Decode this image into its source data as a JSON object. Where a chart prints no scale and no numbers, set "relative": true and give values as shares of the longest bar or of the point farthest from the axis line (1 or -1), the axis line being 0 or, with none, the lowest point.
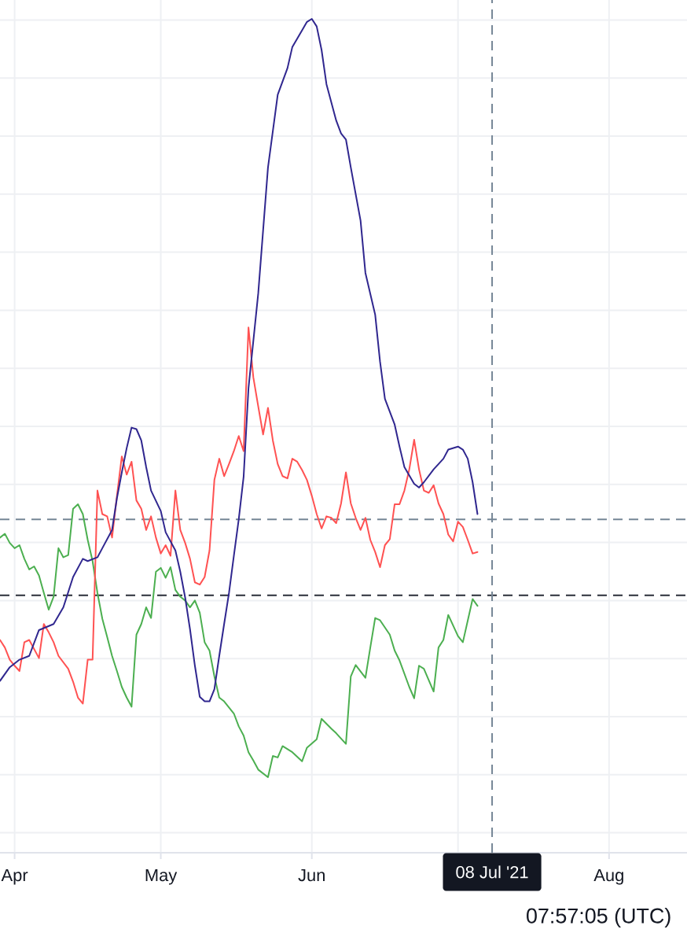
{
  "chart_data": {
    "type": "line",
    "relative": true,
    "grid": true,
    "xlim": [
      "2021-03-29",
      "2021-08-17"
    ],
    "xticks": [
      {
        "value": "2021-04-01",
        "label": "Apr"
      },
      {
        "value": "2021-05-01",
        "label": "May"
      },
      {
        "value": "2021-06-01",
        "label": "Jun"
      },
      {
        "value": "2021-07-01",
        "label": null
      },
      {
        "value": "2021-08-01",
        "label": "Aug"
      }
    ],
    "series": [
      {
        "color": "#4caf50",
        "x": [
          "2021-03-29",
          "2021-03-30",
          "2021-03-31",
          "2021-04-01",
          "2021-04-02",
          "2021-04-03",
          "2021-04-04",
          "2021-04-05",
          "2021-04-06",
          "2021-04-07",
          "2021-04-08",
          "2021-04-09",
          "2021-04-10",
          "2021-04-11",
          "2021-04-12",
          "2021-04-13",
          "2021-04-14",
          "2021-04-15",
          "2021-04-16",
          "2021-04-17",
          "2021-04-18",
          "2021-04-19",
          "2021-04-20",
          "2021-04-21",
          "2021-04-22",
          "2021-04-23",
          "2021-04-24",
          "2021-04-25",
          "2021-04-26",
          "2021-04-27",
          "2021-04-28",
          "2021-04-29",
          "2021-04-30",
          "2021-05-01",
          "2021-05-02",
          "2021-05-03",
          "2021-05-04",
          "2021-05-05",
          "2021-05-06",
          "2021-05-07",
          "2021-05-08",
          "2021-05-09",
          "2021-05-10",
          "2021-05-11",
          "2021-05-12",
          "2021-05-13",
          "2021-05-14",
          "2021-05-16",
          "2021-05-17",
          "2021-05-18",
          "2021-05-19",
          "2021-05-20",
          "2021-05-21",
          "2021-05-23",
          "2021-05-24",
          "2021-05-25",
          "2021-05-26",
          "2021-05-28",
          "2021-05-30",
          "2021-05-31",
          "2021-06-02",
          "2021-06-03",
          "2021-06-05",
          "2021-06-06",
          "2021-06-08",
          "2021-06-09",
          "2021-06-10",
          "2021-06-12",
          "2021-06-13",
          "2021-06-14",
          "2021-06-15",
          "2021-06-17",
          "2021-06-18",
          "2021-06-19",
          "2021-06-21",
          "2021-06-22",
          "2021-06-23",
          "2021-06-24",
          "2021-06-26",
          "2021-06-27",
          "2021-06-28",
          "2021-06-29",
          "2021-07-01",
          "2021-07-02",
          "2021-07-04",
          "2021-07-05"
        ],
        "values": [
          0.316,
          0.321,
          0.309,
          0.302,
          0.306,
          0.288,
          0.274,
          0.278,
          0.266,
          0.243,
          0.221,
          0.238,
          0.302,
          0.29,
          0.293,
          0.354,
          0.36,
          0.347,
          0.313,
          0.285,
          0.243,
          0.209,
          0.185,
          0.16,
          0.14,
          0.119,
          0.105,
          0.093,
          0.188,
          0.202,
          0.224,
          0.21,
          0.271,
          0.276,
          0.263,
          0.277,
          0.247,
          0.238,
          0.233,
          0.224,
          0.233,
          0.217,
          0.178,
          0.167,
          0.133,
          0.105,
          0.1,
          0.084,
          0.067,
          0.055,
          0.033,
          0.022,
          0.01,
          0,
          0.028,
          0.026,
          0.041,
          0.033,
          0.021,
          0.039,
          0.05,
          0.077,
          0.064,
          0.058,
          0.044,
          0.133,
          0.148,
          0.131,
          0.171,
          0.21,
          0.207,
          0.188,
          0.167,
          0.154,
          0.119,
          0.104,
          0.147,
          0.143,
          0.113,
          0.171,
          0.181,
          0.214,
          0.186,
          0.178,
          0.235,
          0.226
        ]
      },
      {
        "color": "#ff5252",
        "x": [
          "2021-03-29",
          "2021-03-30",
          "2021-03-31",
          "2021-04-01",
          "2021-04-02",
          "2021-04-03",
          "2021-04-04",
          "2021-04-05",
          "2021-04-06",
          "2021-04-07",
          "2021-04-08",
          "2021-04-09",
          "2021-04-10",
          "2021-04-12",
          "2021-04-13",
          "2021-04-14",
          "2021-04-15",
          "2021-04-16",
          "2021-04-17",
          "2021-04-18",
          "2021-04-19",
          "2021-04-20",
          "2021-04-21",
          "2021-04-22",
          "2021-04-23",
          "2021-04-24",
          "2021-04-25",
          "2021-04-26",
          "2021-04-27",
          "2021-04-28",
          "2021-04-29",
          "2021-04-30",
          "2021-05-01",
          "2021-05-02",
          "2021-05-03",
          "2021-05-04",
          "2021-05-05",
          "2021-05-06",
          "2021-05-07",
          "2021-05-08",
          "2021-05-09",
          "2021-05-10",
          "2021-05-11",
          "2021-05-12",
          "2021-05-13",
          "2021-05-14",
          "2021-05-15",
          "2021-05-16",
          "2021-05-17",
          "2021-05-18",
          "2021-05-19",
          "2021-05-20",
          "2021-05-21",
          "2021-05-22",
          "2021-05-23",
          "2021-05-24",
          "2021-05-25",
          "2021-05-26",
          "2021-05-27",
          "2021-05-28",
          "2021-05-29",
          "2021-05-30",
          "2021-05-31",
          "2021-06-01",
          "2021-06-02",
          "2021-06-03",
          "2021-06-04",
          "2021-06-05",
          "2021-06-06",
          "2021-06-07",
          "2021-06-08",
          "2021-06-09",
          "2021-06-10",
          "2021-06-11",
          "2021-06-12",
          "2021-06-13",
          "2021-06-14",
          "2021-06-15",
          "2021-06-16",
          "2021-06-17",
          "2021-06-18",
          "2021-06-19",
          "2021-06-20",
          "2021-06-21",
          "2021-06-22",
          "2021-06-23",
          "2021-06-24",
          "2021-06-25",
          "2021-06-26",
          "2021-06-27",
          "2021-06-28",
          "2021-06-29",
          "2021-06-30",
          "2021-07-01",
          "2021-07-02",
          "2021-07-03",
          "2021-07-04",
          "2021-07-05"
        ],
        "values": [
          0.181,
          0.171,
          0.155,
          0.147,
          0.14,
          0.178,
          0.181,
          0.169,
          0.157,
          0.202,
          0.191,
          0.178,
          0.16,
          0.143,
          0.126,
          0.105,
          0.097,
          0.155,
          0.155,
          0.378,
          0.347,
          0.344,
          0.316,
          0.371,
          0.423,
          0.399,
          0.416,
          0.365,
          0.354,
          0.326,
          0.344,
          0.316,
          0.295,
          0.306,
          0.292,
          0.378,
          0.326,
          0.309,
          0.288,
          0.257,
          0.254,
          0.264,
          0.299,
          0.392,
          0.42,
          0.397,
          0.413,
          0.43,
          0.45,
          0.43,
          0.593,
          0.527,
          0.489,
          0.452,
          0.487,
          0.444,
          0.413,
          0.397,
          0.394,
          0.42,
          0.416,
          0.405,
          0.392,
          0.371,
          0.347,
          0.328,
          0.344,
          0.342,
          0.335,
          0.361,
          0.402,
          0.361,
          0.342,
          0.326,
          0.342,
          0.313,
          0.297,
          0.277,
          0.306,
          0.314,
          0.36,
          0.36,
          0.378,
          0.406,
          0.445,
          0.406,
          0.378,
          0.375,
          0.385,
          0.361,
          0.347,
          0.32,
          0.311,
          0.337,
          0.33,
          0.313,
          0.295,
          0.297
        ]
      },
      {
        "color": "#30278f",
        "x": [
          "2021-03-29",
          "2021-03-31",
          "2021-04-02",
          "2021-04-04",
          "2021-04-06",
          "2021-04-09",
          "2021-04-11",
          "2021-04-13",
          "2021-04-15",
          "2021-04-16",
          "2021-04-18",
          "2021-04-19",
          "2021-04-21",
          "2021-04-22",
          "2021-04-23",
          "2021-04-24",
          "2021-04-25",
          "2021-04-26",
          "2021-04-27",
          "2021-04-28",
          "2021-04-29",
          "2021-05-01",
          "2021-05-02",
          "2021-05-04",
          "2021-05-05",
          "2021-05-06",
          "2021-05-07",
          "2021-05-08",
          "2021-05-09",
          "2021-05-10",
          "2021-05-11",
          "2021-05-12",
          "2021-05-13",
          "2021-05-14",
          "2021-05-15",
          "2021-05-16",
          "2021-05-17",
          "2021-05-18",
          "2021-05-19",
          "2021-05-21",
          "2021-05-22",
          "2021-05-23",
          "2021-05-24",
          "2021-05-25",
          "2021-05-27",
          "2021-05-28",
          "2021-05-30",
          "2021-05-31",
          "2021-06-01",
          "2021-06-02",
          "2021-06-03",
          "2021-06-04",
          "2021-06-06",
          "2021-06-07",
          "2021-06-08",
          "2021-06-09",
          "2021-06-11",
          "2021-06-12",
          "2021-06-14",
          "2021-06-15",
          "2021-06-16",
          "2021-06-18",
          "2021-06-19",
          "2021-06-20",
          "2021-06-22",
          "2021-06-23",
          "2021-06-24",
          "2021-06-26",
          "2021-06-28",
          "2021-06-29",
          "2021-07-01",
          "2021-07-02",
          "2021-07-03",
          "2021-07-04",
          "2021-07-05"
        ],
        "values": [
          0.127,
          0.145,
          0.155,
          0.16,
          0.194,
          0.202,
          0.224,
          0.264,
          0.288,
          0.285,
          0.29,
          0.302,
          0.326,
          0.368,
          0.402,
          0.434,
          0.461,
          0.459,
          0.444,
          0.409,
          0.378,
          0.351,
          0.323,
          0.299,
          0.271,
          0.237,
          0.195,
          0.147,
          0.106,
          0.1,
          0.1,
          0.116,
          0.16,
          0.202,
          0.243,
          0.292,
          0.34,
          0.396,
          0.513,
          0.638,
          0.721,
          0.804,
          0.852,
          0.9,
          0.935,
          0.963,
          0.985,
          0.996,
          1,
          0.99,
          0.959,
          0.914,
          0.866,
          0.849,
          0.841,
          0.804,
          0.734,
          0.665,
          0.61,
          0.548,
          0.499,
          0.465,
          0.436,
          0.409,
          0.387,
          0.382,
          0.389,
          0.406,
          0.42,
          0.432,
          0.436,
          0.432,
          0.42,
          0.389,
          0.347
        ]
      }
    ],
    "ref_lines": [
      {
        "axis": "y",
        "value": 0.34,
        "color": "#758696",
        "line_style": "dashed"
      },
      {
        "axis": "y",
        "value": 0.24,
        "color": "#2a2e39",
        "line_style": "dashed"
      },
      {
        "axis": "x",
        "value": "2021-07-08",
        "label": "08 Jul '21",
        "color": "#758696",
        "line_style": "dashed"
      }
    ],
    "annotations": [
      "07:57:05 (UTC)"
    ]
  }
}
